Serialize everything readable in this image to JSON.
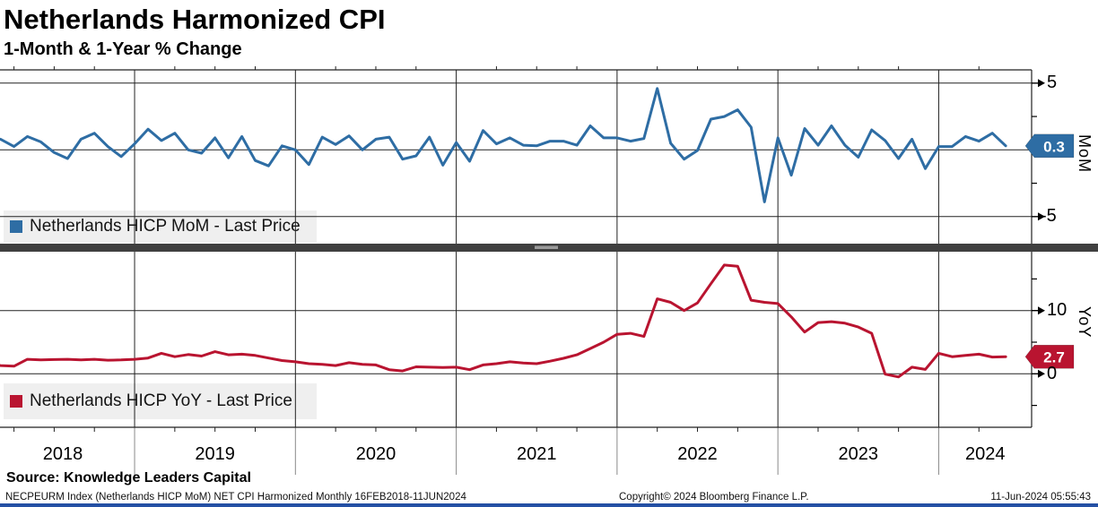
{
  "header": {
    "title": "Netherlands Harmonized CPI",
    "subtitle": "1-Month & 1-Year % Change"
  },
  "colors": {
    "mom_line": "#2e6da4",
    "yoy_line": "#b91430",
    "grid": "#222222",
    "separator": "#404040",
    "separator_grip": "#9a9a9a",
    "legend_bg": "#efefef",
    "bottom_bar": "#2450a4",
    "badge_text": "#ffffff"
  },
  "right_axis": {
    "top_name": "MoM",
    "bottom_name": "YoY",
    "top_tick_high": "5",
    "top_tick_low": "-5",
    "bottom_tick_high": "10",
    "bottom_tick_low": "0"
  },
  "x_axis": {
    "years": [
      "2018",
      "2019",
      "2020",
      "2021",
      "2022",
      "2023",
      "2024"
    ]
  },
  "footer": {
    "source": "Source: Knowledge Leaders Capital",
    "security_line": "NECPEURM Index (Netherlands HICP MoM) NET CPI Harmonized  Monthly 16FEB2018-11JUN2024",
    "copyright": "Copyright© 2024 Bloomberg Finance L.P.",
    "timestamp": "11-Jun-2024 05:55:43"
  },
  "chart_data": [
    {
      "type": "line",
      "panel": "top",
      "name": "Netherlands HICP MoM - Last Price",
      "color": "#2e6da4",
      "start": "2018-02",
      "end": "2024-06",
      "frequency": "monthly",
      "last_price": "0.3",
      "ylim": [
        -7,
        6
      ],
      "gridlines_y": [
        5,
        0,
        -5
      ],
      "ticks_major": [
        5,
        -5
      ],
      "ticks_minor": [
        2.5,
        -2.5
      ],
      "values": [
        0.6,
        0.8,
        0.25,
        1.0,
        0.6,
        -0.2,
        -0.65,
        0.8,
        1.25,
        0.25,
        -0.5,
        0.45,
        1.55,
        0.7,
        1.25,
        0.0,
        -0.25,
        0.9,
        -0.6,
        1.0,
        -0.8,
        -1.2,
        0.3,
        0.0,
        -1.1,
        0.95,
        0.4,
        1.05,
        0.0,
        0.8,
        0.95,
        -0.7,
        -0.45,
        0.95,
        -1.15,
        0.55,
        -0.85,
        1.45,
        0.45,
        0.9,
        0.35,
        0.3,
        0.65,
        0.65,
        0.35,
        1.8,
        0.9,
        0.9,
        0.65,
        0.85,
        4.6,
        0.5,
        -0.7,
        -0.05,
        2.3,
        2.5,
        3.0,
        1.7,
        -3.9,
        0.9,
        -1.9,
        1.6,
        0.35,
        1.8,
        0.35,
        -0.55,
        1.5,
        0.7,
        -0.65,
        0.8,
        -1.4,
        0.25,
        0.25,
        1.0,
        0.65,
        1.25,
        0.3
      ]
    },
    {
      "type": "line",
      "panel": "bottom",
      "name": "Netherlands HICP YoY - Last Price",
      "color": "#b91430",
      "start": "2018-02",
      "end": "2024-06",
      "frequency": "monthly",
      "last_price": "2.7",
      "ylim": [
        -8.5,
        19.3
      ],
      "gridlines_y": [
        10,
        0
      ],
      "ticks_major": [
        10,
        0
      ],
      "ticks_minor": [
        15,
        5,
        -5
      ],
      "values": [
        1.7,
        1.3,
        1.2,
        2.3,
        2.2,
        2.25,
        2.3,
        2.2,
        2.3,
        2.15,
        2.2,
        2.3,
        2.5,
        3.25,
        2.7,
        3.05,
        2.8,
        3.5,
        3.0,
        3.1,
        2.9,
        2.5,
        2.1,
        1.9,
        1.6,
        1.5,
        1.3,
        1.75,
        1.5,
        1.4,
        0.65,
        0.45,
        1.1,
        1.05,
        1.0,
        1.05,
        0.65,
        1.4,
        1.6,
        1.9,
        1.7,
        1.6,
        2.0,
        2.45,
        3.0,
        4.0,
        5.0,
        6.25,
        6.4,
        5.9,
        11.85,
        11.3,
        10.0,
        11.2,
        14.25,
        17.2,
        17.0,
        11.65,
        11.3,
        11.1,
        9.0,
        6.6,
        8.1,
        8.25,
        8.0,
        7.4,
        6.4,
        -0.05,
        -0.5,
        1.05,
        0.7,
        3.25,
        2.7,
        2.9,
        3.1,
        2.65,
        2.7
      ]
    }
  ]
}
